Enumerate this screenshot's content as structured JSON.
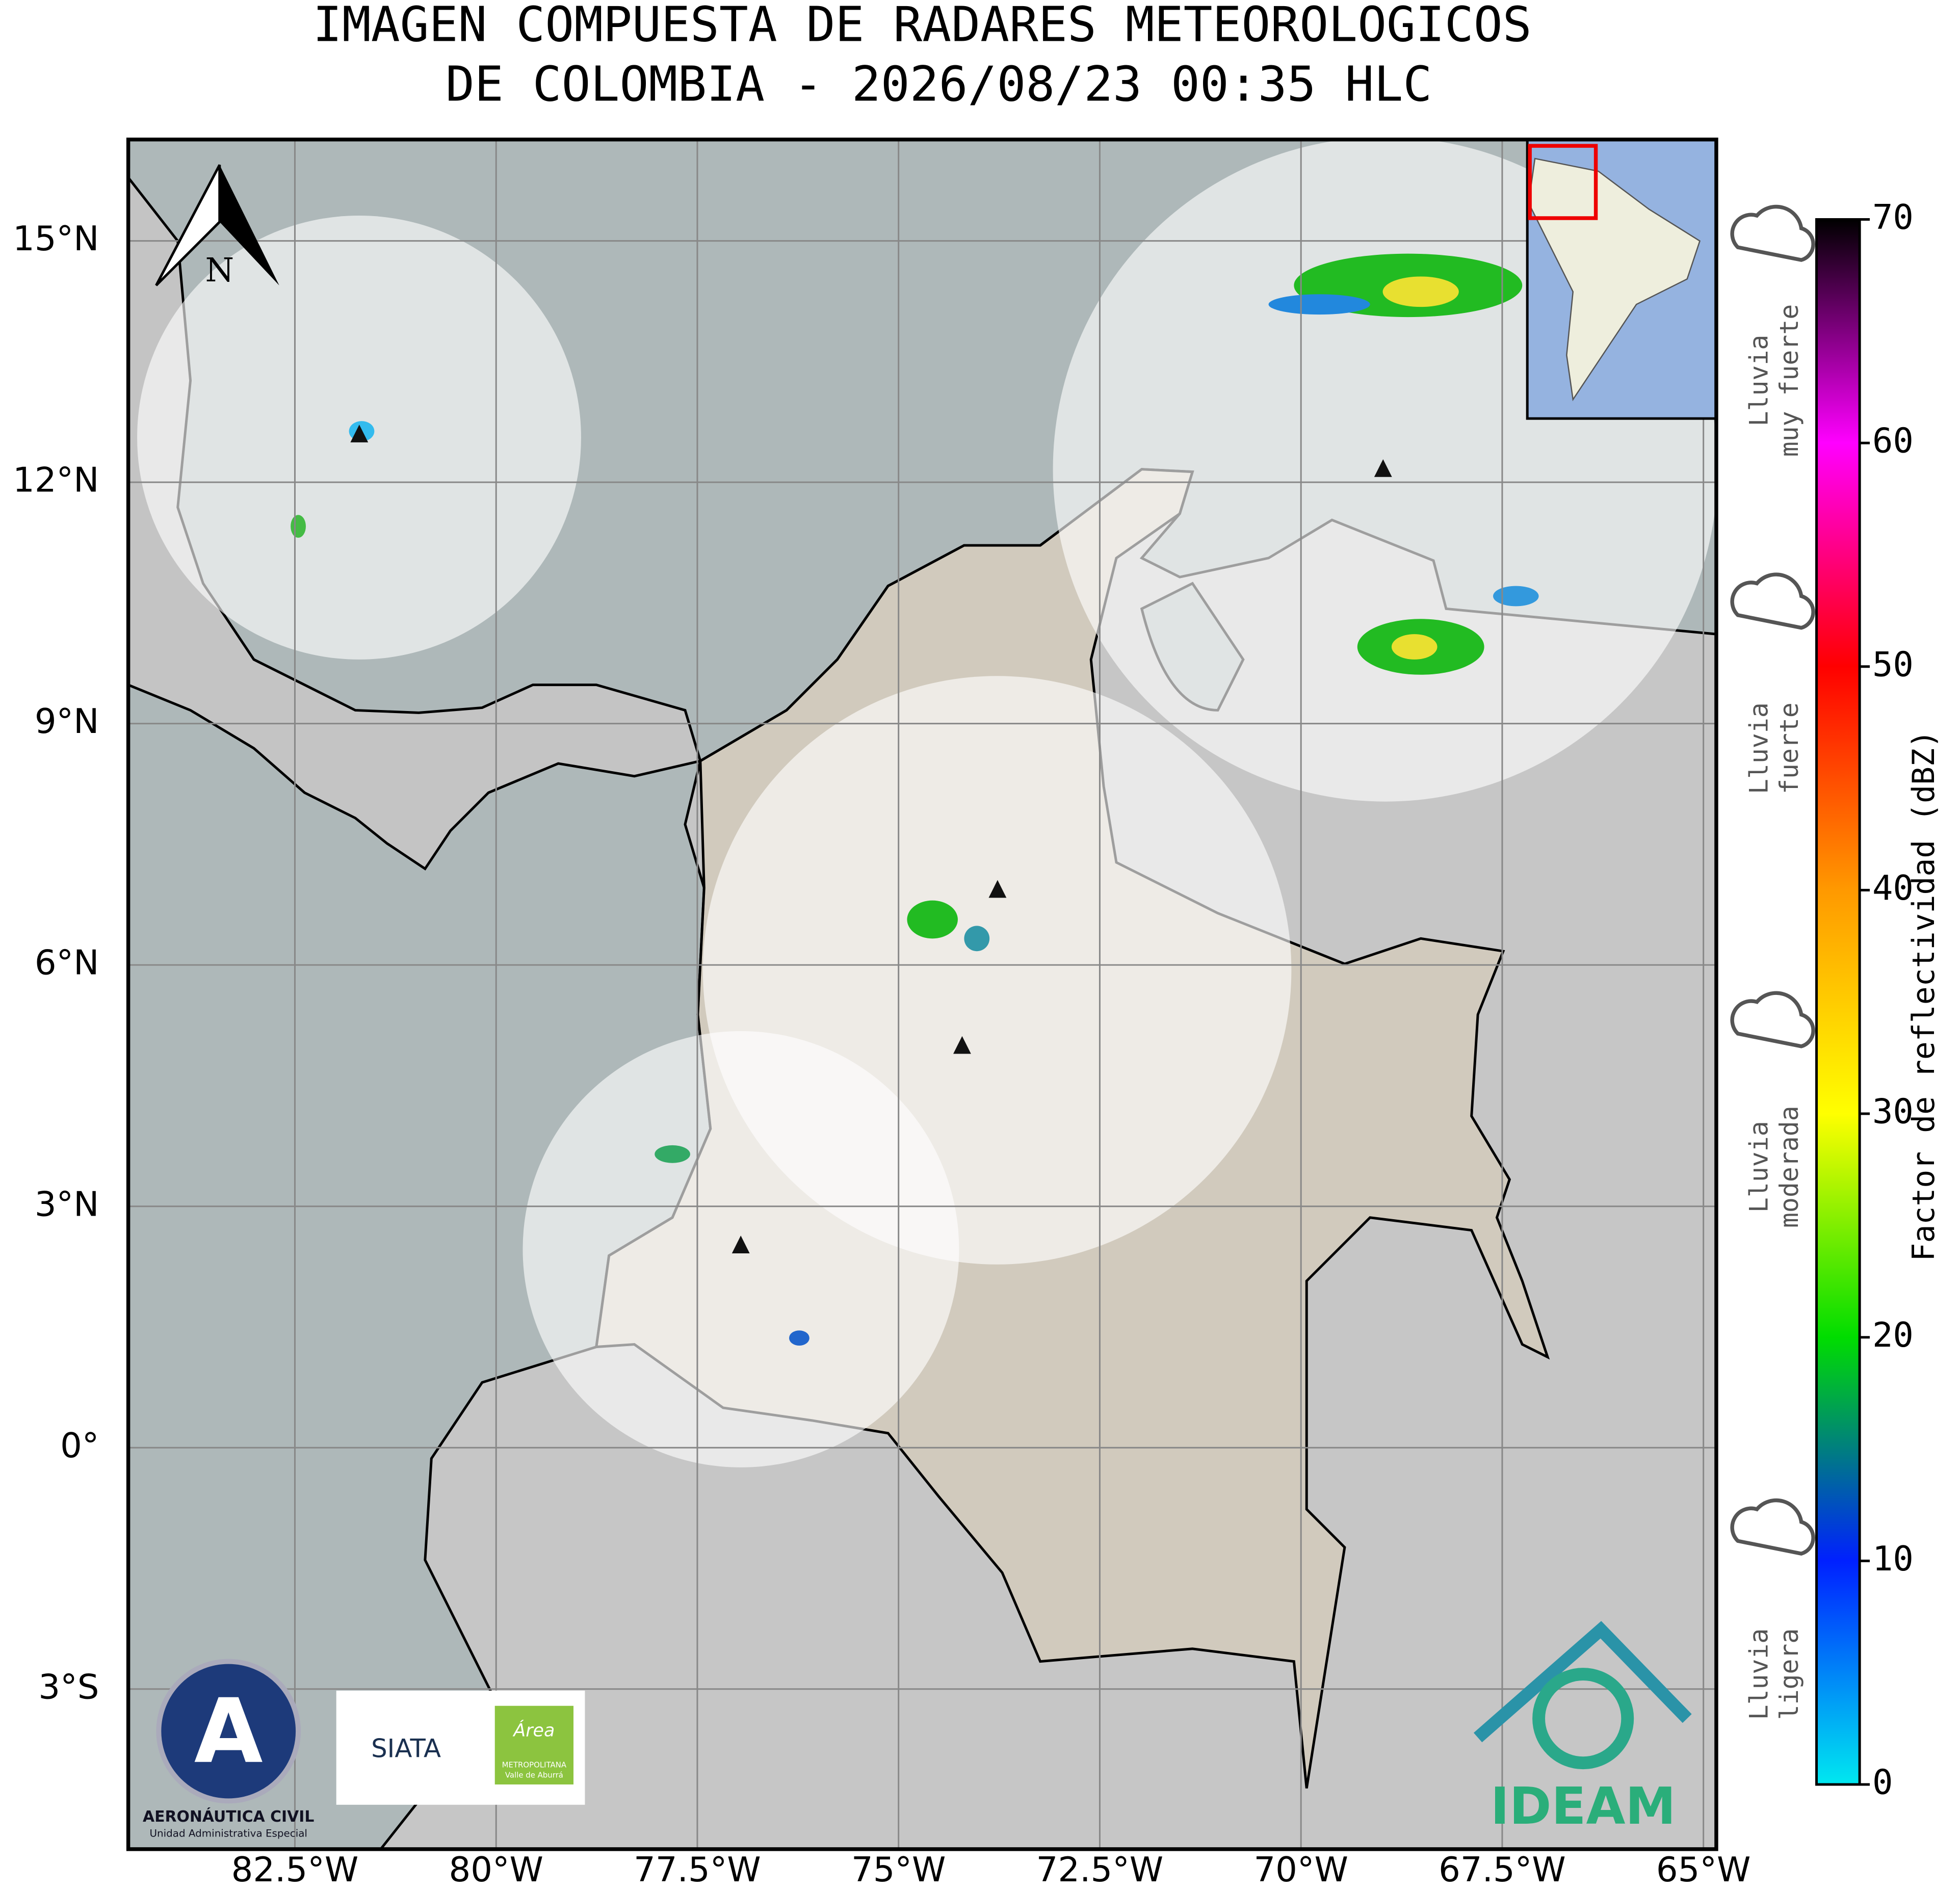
{
  "title": [
    "IMAGEN COMPUESTA DE RADARES METEOROLOGICOS",
    "DE COLOMBIA - 2026/08/23 00:35 HLC"
  ],
  "map": {
    "xlim": [
      -84.57,
      -64.84
    ],
    "ylim": [
      -4.99,
      16.26
    ],
    "xticks": [
      {
        "value": -82.5,
        "label": "82.5°W"
      },
      {
        "value": -80,
        "label": "80°W"
      },
      {
        "value": -77.5,
        "label": "77.5°W"
      },
      {
        "value": -75,
        "label": "75°W"
      },
      {
        "value": -72.5,
        "label": "72.5°W"
      },
      {
        "value": -70,
        "label": "70°W"
      },
      {
        "value": -67.5,
        "label": "67.5°W"
      },
      {
        "value": -65,
        "label": "65°W"
      }
    ],
    "yticks": [
      {
        "value": 15,
        "label": "15°N"
      },
      {
        "value": 12,
        "label": "12°N"
      },
      {
        "value": 9,
        "label": "9°N"
      },
      {
        "value": 6,
        "label": "6°N"
      },
      {
        "value": 3,
        "label": "3°N"
      },
      {
        "value": 0,
        "label": "0°"
      },
      {
        "value": -3,
        "label": "3°S"
      }
    ],
    "grid": true,
    "radars": [
      {
        "lon": -81.7,
        "lat": 12.59
      },
      {
        "lon": -68.98,
        "lat": 12.16
      },
      {
        "lon": -73.77,
        "lat": 6.93
      },
      {
        "lon": -74.21,
        "lat": 4.99
      },
      {
        "lon": -76.96,
        "lat": 2.51
      }
    ],
    "north": "N"
  },
  "colorbar": {
    "label": "Factor de reflectividad (dBZ)",
    "lim": [
      0,
      70
    ],
    "ticks": [
      0,
      10,
      20,
      30,
      40,
      50,
      60,
      70
    ],
    "colors": [
      "#00e8f0",
      "#0020ff",
      "#00dd00",
      "#ffff00",
      "#ff9900",
      "#ff0000",
      "#ff00ff",
      "#000000"
    ]
  },
  "rain_levels": [
    [
      "Lluvia",
      "muy fuerte"
    ],
    [
      "Lluvia",
      "fuerte"
    ],
    [
      "Lluvia",
      "moderada"
    ],
    [
      "Lluvia",
      "ligera"
    ]
  ],
  "logos": {
    "aero": "AERONÁUTICA CIVIL",
    "aero_sub": "Unidad Administrativa Especial",
    "siata": "SIATA",
    "area": "Área",
    "metro": "METROPOLITANA",
    "valle": "Valle de Aburrá",
    "ideam": "IDEAM"
  }
}
